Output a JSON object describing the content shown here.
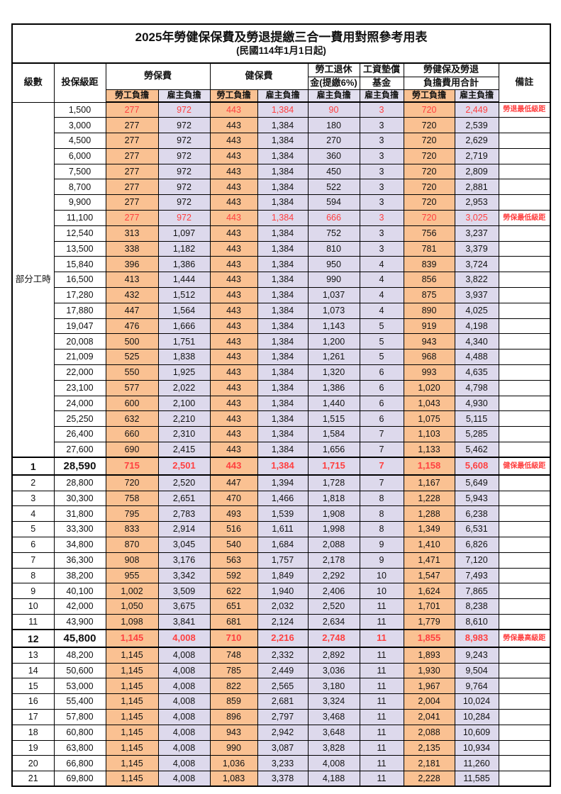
{
  "title": "2025年勞健保保費及勞退提繳三合一費用對照參考用表",
  "subtitle": "(民國114年1月1日起)",
  "colors": {
    "employee_bg": "#FAC192",
    "employer_bg": "#DDD9EC",
    "highlight_text": "#FF4040",
    "border": "#000000"
  },
  "header": {
    "level": "級數",
    "bracket": "投保級距",
    "labor_fee": "勞保費",
    "health_fee": "健保費",
    "pension_line1": "勞工退休",
    "pension_line2": "金(提繳6%)",
    "wage_fund_line1": "工資墊償",
    "wage_fund_line2": "基金",
    "total_line1": "勞健保及勞退",
    "total_line2": "負擔費用合計",
    "remark": "備註",
    "employee_label": "勞工負擔",
    "employer_label": "雇主負擔"
  },
  "group_label": "部分工時",
  "group_rows": 23,
  "rows": [
    {
      "lv": "",
      "br": "1,500",
      "le": "277",
      "lr": "972",
      "he": "443",
      "hr": "1,384",
      "pe": "90",
      "wf": "3",
      "te": "720",
      "ter": "2,449",
      "rm": "勞退最低級距",
      "red": true,
      "bold": false
    },
    {
      "lv": "",
      "br": "3,000",
      "le": "277",
      "lr": "972",
      "he": "443",
      "hr": "1,384",
      "pe": "180",
      "wf": "3",
      "te": "720",
      "ter": "2,539",
      "rm": "",
      "red": false,
      "bold": false
    },
    {
      "lv": "",
      "br": "4,500",
      "le": "277",
      "lr": "972",
      "he": "443",
      "hr": "1,384",
      "pe": "270",
      "wf": "3",
      "te": "720",
      "ter": "2,629",
      "rm": "",
      "red": false,
      "bold": false
    },
    {
      "lv": "",
      "br": "6,000",
      "le": "277",
      "lr": "972",
      "he": "443",
      "hr": "1,384",
      "pe": "360",
      "wf": "3",
      "te": "720",
      "ter": "2,719",
      "rm": "",
      "red": false,
      "bold": false
    },
    {
      "lv": "",
      "br": "7,500",
      "le": "277",
      "lr": "972",
      "he": "443",
      "hr": "1,384",
      "pe": "450",
      "wf": "3",
      "te": "720",
      "ter": "2,809",
      "rm": "",
      "red": false,
      "bold": false
    },
    {
      "lv": "",
      "br": "8,700",
      "le": "277",
      "lr": "972",
      "he": "443",
      "hr": "1,384",
      "pe": "522",
      "wf": "3",
      "te": "720",
      "ter": "2,881",
      "rm": "",
      "red": false,
      "bold": false
    },
    {
      "lv": "",
      "br": "9,900",
      "le": "277",
      "lr": "972",
      "he": "443",
      "hr": "1,384",
      "pe": "594",
      "wf": "3",
      "te": "720",
      "ter": "2,953",
      "rm": "",
      "red": false,
      "bold": false
    },
    {
      "lv": "",
      "br": "11,100",
      "le": "277",
      "lr": "972",
      "he": "443",
      "hr": "1,384",
      "pe": "666",
      "wf": "3",
      "te": "720",
      "ter": "3,025",
      "rm": "勞保最低級距",
      "red": true,
      "bold": false
    },
    {
      "lv": "",
      "br": "12,540",
      "le": "313",
      "lr": "1,097",
      "he": "443",
      "hr": "1,384",
      "pe": "752",
      "wf": "3",
      "te": "756",
      "ter": "3,237",
      "rm": "",
      "red": false,
      "bold": false
    },
    {
      "lv": "",
      "br": "13,500",
      "le": "338",
      "lr": "1,182",
      "he": "443",
      "hr": "1,384",
      "pe": "810",
      "wf": "3",
      "te": "781",
      "ter": "3,379",
      "rm": "",
      "red": false,
      "bold": false
    },
    {
      "lv": "",
      "br": "15,840",
      "le": "396",
      "lr": "1,386",
      "he": "443",
      "hr": "1,384",
      "pe": "950",
      "wf": "4",
      "te": "839",
      "ter": "3,724",
      "rm": "",
      "red": false,
      "bold": false
    },
    {
      "lv": "",
      "br": "16,500",
      "le": "413",
      "lr": "1,444",
      "he": "443",
      "hr": "1,384",
      "pe": "990",
      "wf": "4",
      "te": "856",
      "ter": "3,822",
      "rm": "",
      "red": false,
      "bold": false
    },
    {
      "lv": "",
      "br": "17,280",
      "le": "432",
      "lr": "1,512",
      "he": "443",
      "hr": "1,384",
      "pe": "1,037",
      "wf": "4",
      "te": "875",
      "ter": "3,937",
      "rm": "",
      "red": false,
      "bold": false
    },
    {
      "lv": "",
      "br": "17,880",
      "le": "447",
      "lr": "1,564",
      "he": "443",
      "hr": "1,384",
      "pe": "1,073",
      "wf": "4",
      "te": "890",
      "ter": "4,025",
      "rm": "",
      "red": false,
      "bold": false
    },
    {
      "lv": "",
      "br": "19,047",
      "le": "476",
      "lr": "1,666",
      "he": "443",
      "hr": "1,384",
      "pe": "1,143",
      "wf": "5",
      "te": "919",
      "ter": "4,198",
      "rm": "",
      "red": false,
      "bold": false
    },
    {
      "lv": "",
      "br": "20,008",
      "le": "500",
      "lr": "1,751",
      "he": "443",
      "hr": "1,384",
      "pe": "1,200",
      "wf": "5",
      "te": "943",
      "ter": "4,340",
      "rm": "",
      "red": false,
      "bold": false
    },
    {
      "lv": "",
      "br": "21,009",
      "le": "525",
      "lr": "1,838",
      "he": "443",
      "hr": "1,384",
      "pe": "1,261",
      "wf": "5",
      "te": "968",
      "ter": "4,488",
      "rm": "",
      "red": false,
      "bold": false
    },
    {
      "lv": "",
      "br": "22,000",
      "le": "550",
      "lr": "1,925",
      "he": "443",
      "hr": "1,384",
      "pe": "1,320",
      "wf": "6",
      "te": "993",
      "ter": "4,635",
      "rm": "",
      "red": false,
      "bold": false
    },
    {
      "lv": "",
      "br": "23,100",
      "le": "577",
      "lr": "2,022",
      "he": "443",
      "hr": "1,384",
      "pe": "1,386",
      "wf": "6",
      "te": "1,020",
      "ter": "4,798",
      "rm": "",
      "red": false,
      "bold": false
    },
    {
      "lv": "",
      "br": "24,000",
      "le": "600",
      "lr": "2,100",
      "he": "443",
      "hr": "1,384",
      "pe": "1,440",
      "wf": "6",
      "te": "1,043",
      "ter": "4,930",
      "rm": "",
      "red": false,
      "bold": false
    },
    {
      "lv": "",
      "br": "25,250",
      "le": "632",
      "lr": "2,210",
      "he": "443",
      "hr": "1,384",
      "pe": "1,515",
      "wf": "6",
      "te": "1,075",
      "ter": "5,115",
      "rm": "",
      "red": false,
      "bold": false
    },
    {
      "lv": "",
      "br": "26,400",
      "le": "660",
      "lr": "2,310",
      "he": "443",
      "hr": "1,384",
      "pe": "1,584",
      "wf": "7",
      "te": "1,103",
      "ter": "5,285",
      "rm": "",
      "red": false,
      "bold": false
    },
    {
      "lv": "",
      "br": "27,600",
      "le": "690",
      "lr": "2,415",
      "he": "443",
      "hr": "1,384",
      "pe": "1,656",
      "wf": "7",
      "te": "1,133",
      "ter": "5,462",
      "rm": "",
      "red": false,
      "bold": false
    },
    {
      "lv": "1",
      "br": "28,590",
      "le": "715",
      "lr": "2,501",
      "he": "443",
      "hr": "1,384",
      "pe": "1,715",
      "wf": "7",
      "te": "1,158",
      "ter": "5,608",
      "rm": "健保最低級距",
      "red": true,
      "bold": true
    },
    {
      "lv": "2",
      "br": "28,800",
      "le": "720",
      "lr": "2,520",
      "he": "447",
      "hr": "1,394",
      "pe": "1,728",
      "wf": "7",
      "te": "1,167",
      "ter": "5,649",
      "rm": "",
      "red": false,
      "bold": false
    },
    {
      "lv": "3",
      "br": "30,300",
      "le": "758",
      "lr": "2,651",
      "he": "470",
      "hr": "1,466",
      "pe": "1,818",
      "wf": "8",
      "te": "1,228",
      "ter": "5,943",
      "rm": "",
      "red": false,
      "bold": false
    },
    {
      "lv": "4",
      "br": "31,800",
      "le": "795",
      "lr": "2,783",
      "he": "493",
      "hr": "1,539",
      "pe": "1,908",
      "wf": "8",
      "te": "1,288",
      "ter": "6,238",
      "rm": "",
      "red": false,
      "bold": false
    },
    {
      "lv": "5",
      "br": "33,300",
      "le": "833",
      "lr": "2,914",
      "he": "516",
      "hr": "1,611",
      "pe": "1,998",
      "wf": "8",
      "te": "1,349",
      "ter": "6,531",
      "rm": "",
      "red": false,
      "bold": false
    },
    {
      "lv": "6",
      "br": "34,800",
      "le": "870",
      "lr": "3,045",
      "he": "540",
      "hr": "1,684",
      "pe": "2,088",
      "wf": "9",
      "te": "1,410",
      "ter": "6,826",
      "rm": "",
      "red": false,
      "bold": false
    },
    {
      "lv": "7",
      "br": "36,300",
      "le": "908",
      "lr": "3,176",
      "he": "563",
      "hr": "1,757",
      "pe": "2,178",
      "wf": "9",
      "te": "1,471",
      "ter": "7,120",
      "rm": "",
      "red": false,
      "bold": false
    },
    {
      "lv": "8",
      "br": "38,200",
      "le": "955",
      "lr": "3,342",
      "he": "592",
      "hr": "1,849",
      "pe": "2,292",
      "wf": "10",
      "te": "1,547",
      "ter": "7,493",
      "rm": "",
      "red": false,
      "bold": false
    },
    {
      "lv": "9",
      "br": "40,100",
      "le": "1,002",
      "lr": "3,509",
      "he": "622",
      "hr": "1,940",
      "pe": "2,406",
      "wf": "10",
      "te": "1,624",
      "ter": "7,865",
      "rm": "",
      "red": false,
      "bold": false
    },
    {
      "lv": "10",
      "br": "42,000",
      "le": "1,050",
      "lr": "3,675",
      "he": "651",
      "hr": "2,032",
      "pe": "2,520",
      "wf": "11",
      "te": "1,701",
      "ter": "8,238",
      "rm": "",
      "red": false,
      "bold": false
    },
    {
      "lv": "11",
      "br": "43,900",
      "le": "1,098",
      "lr": "3,841",
      "he": "681",
      "hr": "2,124",
      "pe": "2,634",
      "wf": "11",
      "te": "1,779",
      "ter": "8,610",
      "rm": "",
      "red": false,
      "bold": false
    },
    {
      "lv": "12",
      "br": "45,800",
      "le": "1,145",
      "lr": "4,008",
      "he": "710",
      "hr": "2,216",
      "pe": "2,748",
      "wf": "11",
      "te": "1,855",
      "ter": "8,983",
      "rm": "勞保最高級距",
      "red": true,
      "bold": true
    },
    {
      "lv": "13",
      "br": "48,200",
      "le": "1,145",
      "lr": "4,008",
      "he": "748",
      "hr": "2,332",
      "pe": "2,892",
      "wf": "11",
      "te": "1,893",
      "ter": "9,243",
      "rm": "",
      "red": false,
      "bold": false
    },
    {
      "lv": "14",
      "br": "50,600",
      "le": "1,145",
      "lr": "4,008",
      "he": "785",
      "hr": "2,449",
      "pe": "3,036",
      "wf": "11",
      "te": "1,930",
      "ter": "9,504",
      "rm": "",
      "red": false,
      "bold": false
    },
    {
      "lv": "15",
      "br": "53,000",
      "le": "1,145",
      "lr": "4,008",
      "he": "822",
      "hr": "2,565",
      "pe": "3,180",
      "wf": "11",
      "te": "1,967",
      "ter": "9,764",
      "rm": "",
      "red": false,
      "bold": false
    },
    {
      "lv": "16",
      "br": "55,400",
      "le": "1,145",
      "lr": "4,008",
      "he": "859",
      "hr": "2,681",
      "pe": "3,324",
      "wf": "11",
      "te": "2,004",
      "ter": "10,024",
      "rm": "",
      "red": false,
      "bold": false
    },
    {
      "lv": "17",
      "br": "57,800",
      "le": "1,145",
      "lr": "4,008",
      "he": "896",
      "hr": "2,797",
      "pe": "3,468",
      "wf": "11",
      "te": "2,041",
      "ter": "10,284",
      "rm": "",
      "red": false,
      "bold": false
    },
    {
      "lv": "18",
      "br": "60,800",
      "le": "1,145",
      "lr": "4,008",
      "he": "943",
      "hr": "2,942",
      "pe": "3,648",
      "wf": "11",
      "te": "2,088",
      "ter": "10,609",
      "rm": "",
      "red": false,
      "bold": false
    },
    {
      "lv": "19",
      "br": "63,800",
      "le": "1,145",
      "lr": "4,008",
      "he": "990",
      "hr": "3,087",
      "pe": "3,828",
      "wf": "11",
      "te": "2,135",
      "ter": "10,934",
      "rm": "",
      "red": false,
      "bold": false
    },
    {
      "lv": "20",
      "br": "66,800",
      "le": "1,145",
      "lr": "4,008",
      "he": "1,036",
      "hr": "3,233",
      "pe": "4,008",
      "wf": "11",
      "te": "2,181",
      "ter": "11,260",
      "rm": "",
      "red": false,
      "bold": false
    },
    {
      "lv": "21",
      "br": "69,800",
      "le": "1,145",
      "lr": "4,008",
      "he": "1,083",
      "hr": "3,378",
      "pe": "4,188",
      "wf": "11",
      "te": "2,228",
      "ter": "11,585",
      "rm": "",
      "red": false,
      "bold": false
    }
  ]
}
